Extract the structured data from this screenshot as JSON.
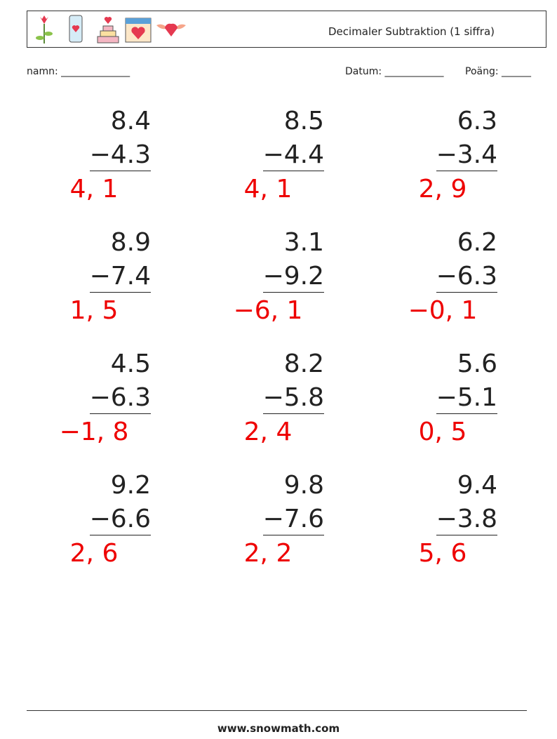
{
  "header": {
    "title": "Decimaler Subtraktion (1 siffra)"
  },
  "fields": {
    "name": "namn: ______________",
    "date": "Datum: ____________",
    "score": "Poäng: ______"
  },
  "problems": [
    {
      "top": "8.4",
      "bottom": "−4.3",
      "answer": "4, 1"
    },
    {
      "top": "8.5",
      "bottom": "−4.4",
      "answer": "4, 1"
    },
    {
      "top": "6.3",
      "bottom": "−3.4",
      "answer": "2, 9"
    },
    {
      "top": "8.9",
      "bottom": "−7.4",
      "answer": "1, 5"
    },
    {
      "top": "3.1",
      "bottom": "−9.2",
      "answer": "−6, 1"
    },
    {
      "top": "6.2",
      "bottom": "−6.3",
      "answer": "−0, 1"
    },
    {
      "top": "4.5",
      "bottom": "−6.3",
      "answer": "−1, 8"
    },
    {
      "top": "8.2",
      "bottom": "−5.8",
      "answer": "2, 4"
    },
    {
      "top": "5.6",
      "bottom": "−5.1",
      "answer": "0, 5"
    },
    {
      "top": "9.2",
      "bottom": "−6.6",
      "answer": "2, 6"
    },
    {
      "top": "9.8",
      "bottom": "−7.6",
      "answer": "2, 2"
    },
    {
      "top": "9.4",
      "bottom": "−3.8",
      "answer": "5, 6"
    }
  ],
  "footer": "www.snowmath.com"
}
